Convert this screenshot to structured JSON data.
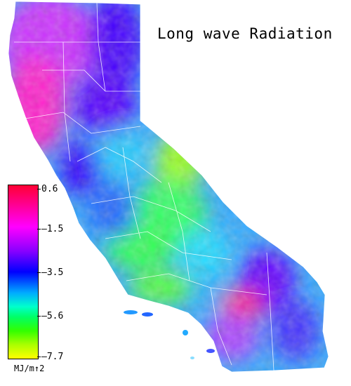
{
  "title": "Long wave Radiation",
  "legend": {
    "ticks": [
      "0.6",
      "–1.5",
      "–3.5",
      "–5.6",
      "–7.7"
    ],
    "unit": "MJ/m↑2",
    "colors": [
      "#ff0033",
      "#ff00ff",
      "#0000ff",
      "#00ffcc",
      "#33ff00",
      "#ffff00"
    ]
  }
}
